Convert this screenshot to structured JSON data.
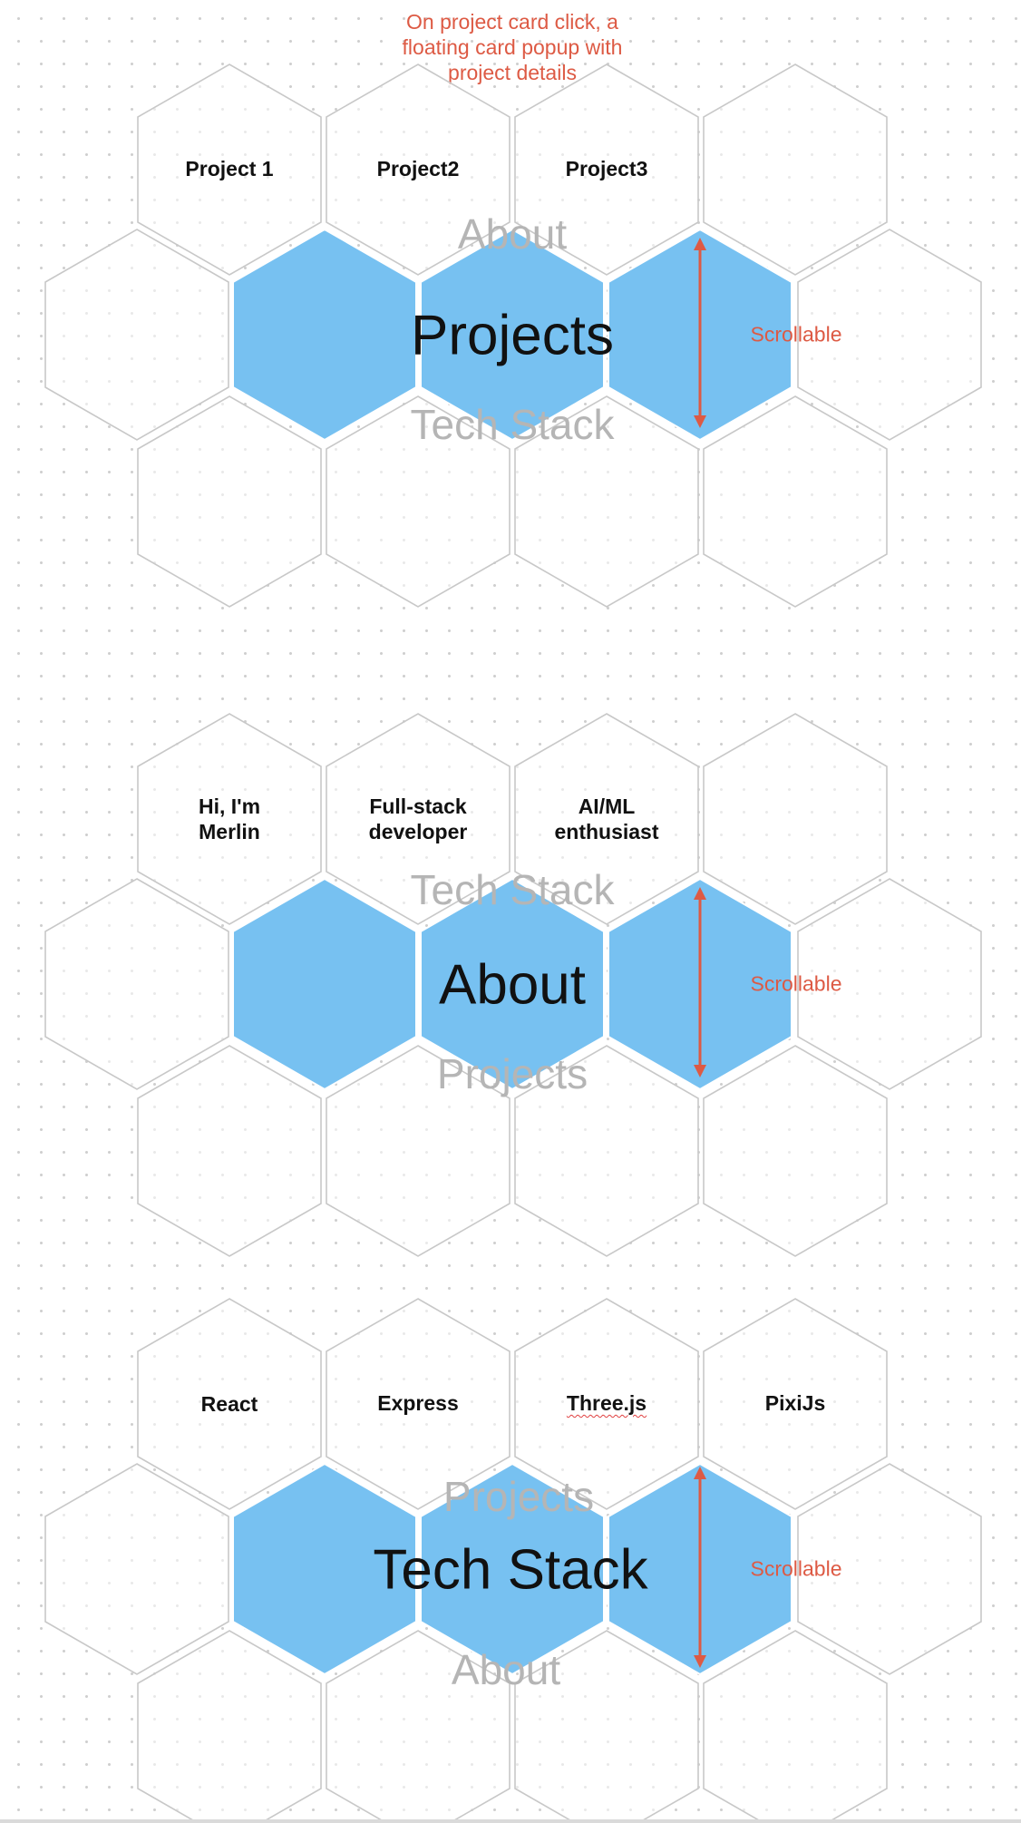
{
  "annotation_note": "On project card click, a\nfloating card popup with\nproject details",
  "scroll_label": "Scrollable",
  "colors": {
    "hex_filled": "#77c1f1",
    "hex_outline": "#c8c8c8",
    "annotation": "#dd5a44",
    "ghost_text": "#b5b5b5",
    "title_text": "#111111"
  },
  "sections": [
    {
      "title": "Projects",
      "ghost_above": "About",
      "ghost_below": "Tech Stack",
      "cards": [
        "Project 1",
        "Project2",
        "Project3",
        ""
      ]
    },
    {
      "title": "About",
      "ghost_above": "Tech Stack",
      "ghost_below": "Projects",
      "cards": [
        "Hi, I'm\nMerlin",
        "Full-stack\ndeveloper",
        "AI/ML\nenthusiast",
        ""
      ]
    },
    {
      "title": "Tech Stack",
      "ghost_above": "Projects",
      "ghost_below": "About",
      "cards": [
        "React",
        "Express",
        "Three.js",
        "PixiJs"
      ]
    }
  ]
}
